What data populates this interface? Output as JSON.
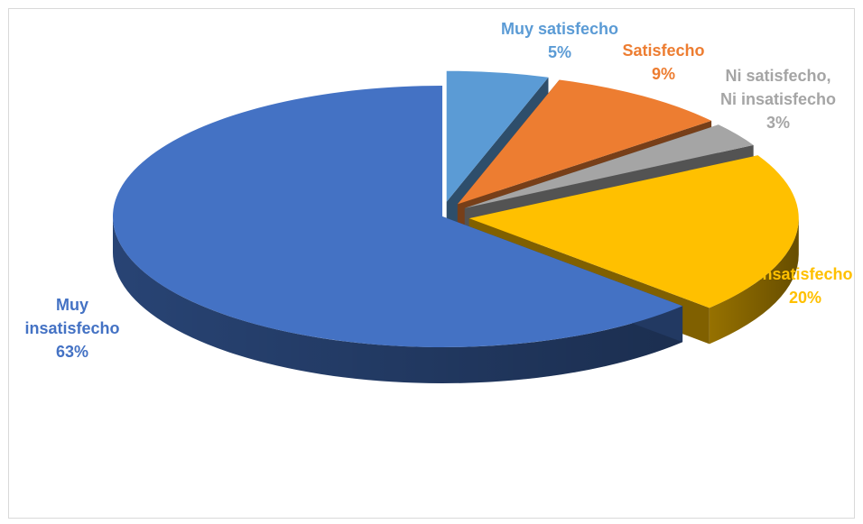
{
  "chart_data": {
    "type": "pie",
    "style": "3d-exploded",
    "slices": [
      {
        "name": "Muy satisfecho",
        "value": 5,
        "label": "5%",
        "color": "#5B9BD5"
      },
      {
        "name": "Satisfecho",
        "value": 9,
        "label": "9%",
        "color": "#ED7D31"
      },
      {
        "name": "Ni satisfecho, Ni insatisfecho",
        "label_lines": [
          "Ni satisfecho,",
          "Ni insatisfecho"
        ],
        "value": 3,
        "label": "3%",
        "color": "#A5A5A5"
      },
      {
        "name": "Insatisfecho",
        "value": 20,
        "label": "20%",
        "color": "#FFC000"
      },
      {
        "name": "Muy insatisfecho",
        "label_lines": [
          "Muy",
          "insatisfecho"
        ],
        "value": 63,
        "label": "63%",
        "color": "#4472C4"
      }
    ],
    "legend": "none"
  }
}
